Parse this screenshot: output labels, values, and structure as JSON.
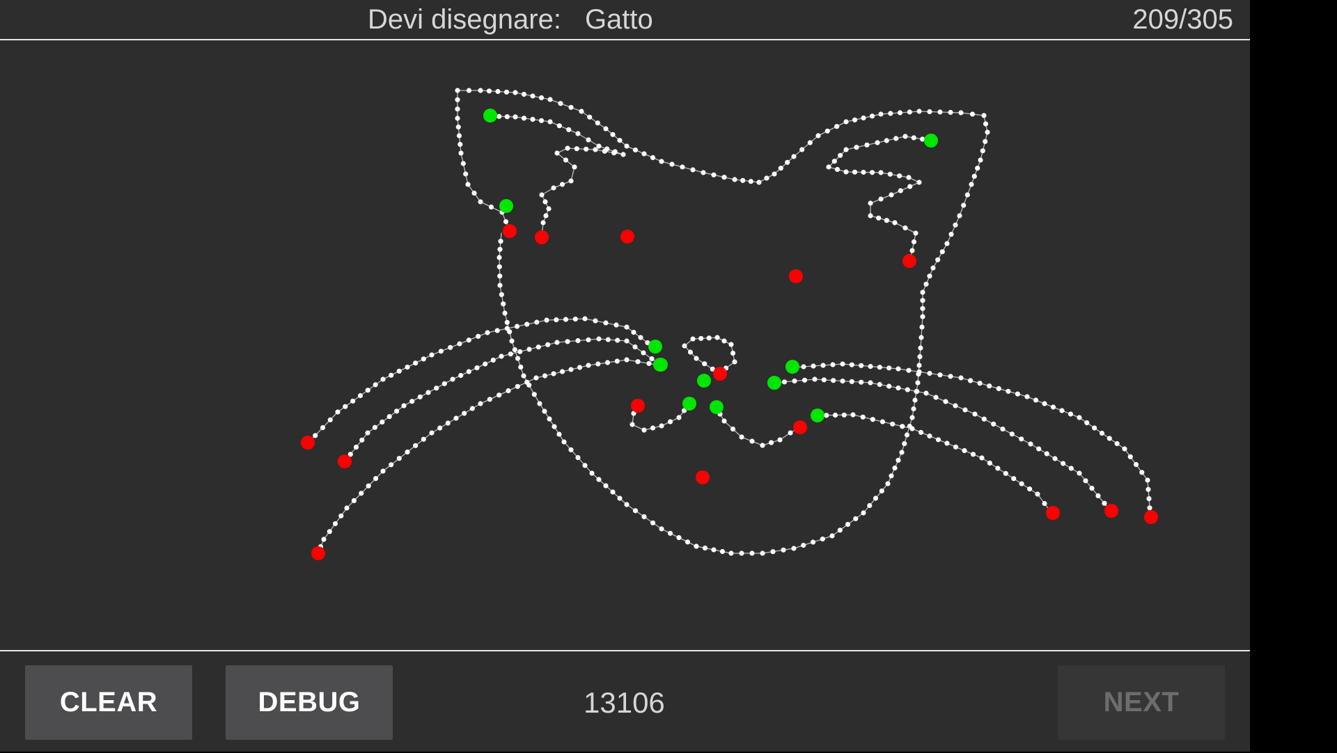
{
  "header": {
    "prompt_label": "Devi disegnare:",
    "target_word": "Gatto",
    "progress": "209/305"
  },
  "footer": {
    "clear_label": "CLEAR",
    "debug_label": "DEBUG",
    "score": "13106",
    "next_label": "NEXT",
    "next_enabled": false
  },
  "colors": {
    "background": "#2d2d2d",
    "stroke": "#ffffff",
    "stroke_start": "#00e600",
    "stroke_end": "#ff0000"
  }
}
